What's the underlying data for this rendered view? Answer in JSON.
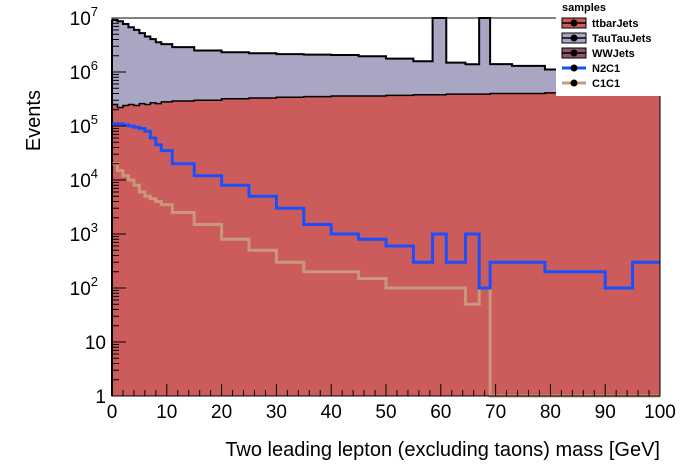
{
  "chart_data": {
    "type": "area",
    "title": "",
    "xlabel": "Two leading lepton (excluding taons) mass [GeV]",
    "ylabel": "Events",
    "xlim": [
      0,
      100
    ],
    "ylim": [
      1,
      10000000
    ],
    "yscale": "log",
    "stacked": true,
    "x_ticks": [
      "0",
      "10",
      "20",
      "30",
      "40",
      "50",
      "60",
      "70",
      "80",
      "90",
      "100"
    ],
    "y_ticks": [
      {
        "value": 1,
        "base": "1",
        "exp": ""
      },
      {
        "value": 10,
        "base": "10",
        "exp": ""
      },
      {
        "value": 100,
        "base": "10",
        "exp": "2"
      },
      {
        "value": 1000,
        "base": "10",
        "exp": "3"
      },
      {
        "value": 10000,
        "base": "10",
        "exp": "4"
      },
      {
        "value": 100000,
        "base": "10",
        "exp": "5"
      },
      {
        "value": 1000000,
        "base": "10",
        "exp": "6"
      },
      {
        "value": 10000000,
        "base": "10",
        "exp": "7"
      }
    ],
    "legend": {
      "title": "samples",
      "placement": "top-right",
      "entries": [
        {
          "name": "ttbarJets",
          "color": "#cc5c5c"
        },
        {
          "name": "TauTauJets",
          "color": "#a8a6c2"
        },
        {
          "name": "WWJets",
          "color": "#8e5a66"
        },
        {
          "name": "N2C1",
          "color": "#1a4fff"
        },
        {
          "name": "C1C1",
          "color": "#c99878"
        }
      ]
    },
    "x": [
      0.5,
      1.5,
      2.5,
      3.5,
      4.5,
      5.5,
      6.5,
      7.5,
      8.5,
      9.5,
      12.5,
      17.5,
      22.5,
      27.5,
      32.5,
      37.5,
      42.5,
      47.5,
      52.5,
      57.5,
      59.5,
      62.5,
      66.5,
      67.5,
      70.5,
      75.5,
      82.5,
      87.5,
      92.5,
      97.5
    ],
    "series": [
      {
        "name": "ttbarJets",
        "color": "#cc5c5c",
        "values": [
          250000,
          220000,
          240000,
          250000,
          240000,
          260000,
          250000,
          270000,
          260000,
          280000,
          290000,
          300000,
          320000,
          330000,
          340000,
          350000,
          360000,
          360000,
          370000,
          380000,
          380000,
          390000,
          390000,
          390000,
          400000,
          400000,
          410000,
          400000,
          390000,
          380000
        ]
      },
      {
        "name": "TauTauJets",
        "color": "#a8a6c2",
        "values": [
          9000000,
          8500000,
          7500000,
          6500000,
          5800000,
          5000000,
          4300000,
          3800000,
          3300000,
          3000000,
          2600000,
          2200000,
          2000000,
          1900000,
          1800000,
          1750000,
          1700000,
          1600000,
          1400000,
          1200000,
          20000000,
          1100000,
          1000000,
          10000000,
          1000000,
          900000,
          700000,
          600000,
          550000,
          450000
        ]
      },
      {
        "name": "N2C1",
        "color": "#1a4fff",
        "values": [
          110000,
          110000,
          105000,
          100000,
          95000,
          90000,
          80000,
          60000,
          45000,
          35000,
          20000,
          12000,
          8000,
          5000,
          3000,
          1500,
          1000,
          800,
          600,
          300,
          1000,
          300,
          1000,
          100,
          300,
          300,
          200,
          200,
          100,
          300
        ]
      },
      {
        "name": "C1C1",
        "color": "#c99878",
        "values": [
          20000,
          15000,
          12000,
          10000,
          8000,
          6000,
          5000,
          4500,
          4000,
          3500,
          2500,
          1500,
          800,
          500,
          300,
          200,
          200,
          150,
          100,
          100,
          100,
          100,
          50,
          100,
          1,
          1,
          1,
          1,
          1,
          1
        ]
      }
    ]
  }
}
